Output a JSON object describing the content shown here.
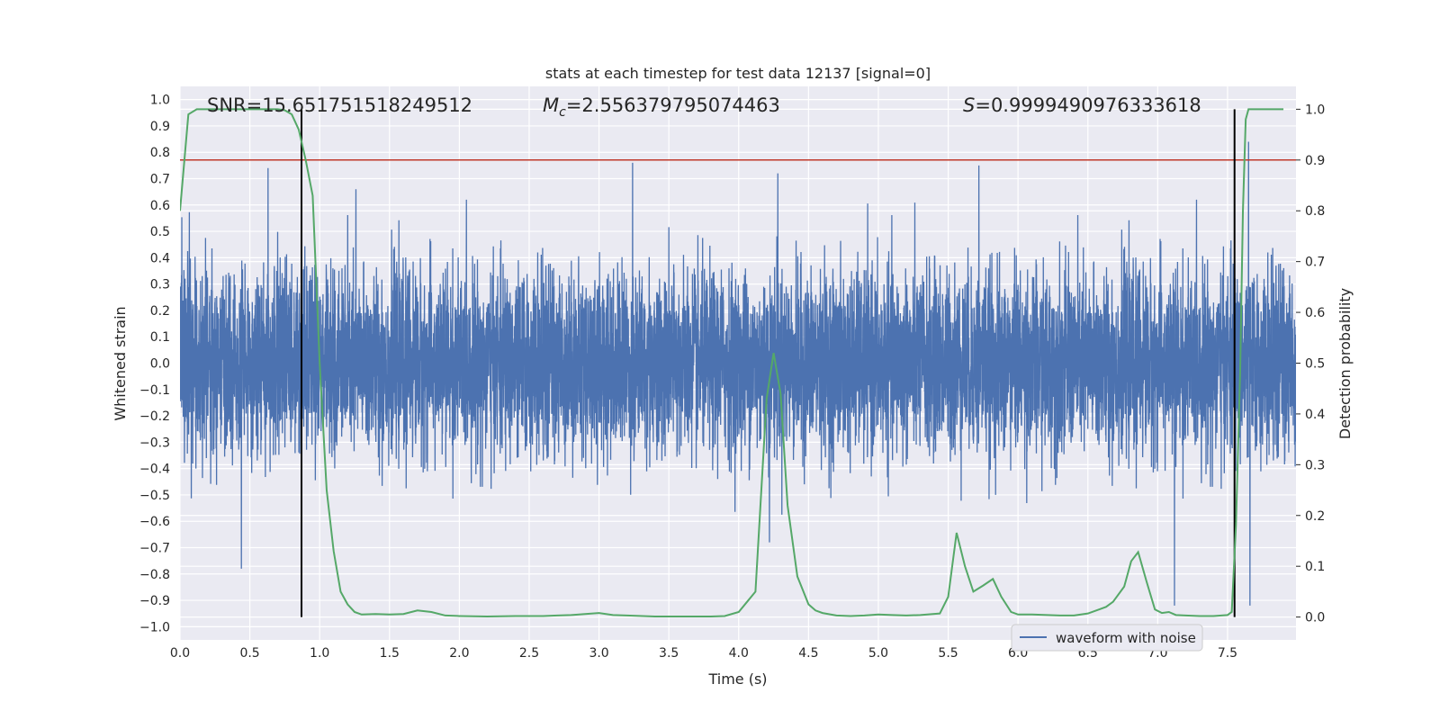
{
  "chart_data": {
    "type": "line",
    "title": "stats at each timestep for test data 12137 [signal=0]",
    "xlabel": "Time (s)",
    "ylabel": "Whitened strain",
    "y2label": "Detection probability",
    "xlim": [
      0.0,
      7.99
    ],
    "ylim": [
      -1.05,
      1.05
    ],
    "y2lim": [
      -0.045,
      1.045
    ],
    "xticks": [
      "0.0",
      "0.5",
      "1.0",
      "1.5",
      "2.0",
      "2.5",
      "3.0",
      "3.5",
      "4.0",
      "4.5",
      "5.0",
      "5.5",
      "6.0",
      "6.5",
      "7.0",
      "7.5"
    ],
    "yticks": [
      "−1.0",
      "−0.9",
      "−0.8",
      "−0.7",
      "−0.6",
      "−0.5",
      "−0.4",
      "−0.3",
      "−0.2",
      "−0.1",
      "0.0",
      "0.1",
      "0.2",
      "0.3",
      "0.4",
      "0.5",
      "0.6",
      "0.7",
      "0.8",
      "0.9",
      "1.0"
    ],
    "y2ticks": [
      "0.0",
      "0.1",
      "0.2",
      "0.3",
      "0.4",
      "0.5",
      "0.6",
      "0.7",
      "0.8",
      "0.9",
      "1.0"
    ],
    "annotations": {
      "snr_label": "SNR=15.651751518249512",
      "mc_symbol": "M",
      "mc_subscript": "c",
      "mc_value": "=2.556379795074463",
      "s_symbol": "S",
      "s_value": "=0.9999490976333618"
    },
    "legend": {
      "label": "waveform with noise",
      "position": "lower-right"
    },
    "threshold_line": {
      "y2": 0.9,
      "color": "#c0392b"
    },
    "vertical_markers": [
      0.87,
      7.55
    ],
    "waveform": {
      "name": "waveform with noise",
      "color": "#4c72b0",
      "amplitude_std": 0.17,
      "envelope_peaks": [
        {
          "x": 0.63,
          "y": 0.74
        },
        {
          "x": 0.44,
          "y": -0.78
        },
        {
          "x": 1.26,
          "y": 0.66
        },
        {
          "x": 3.24,
          "y": 0.76
        },
        {
          "x": 4.28,
          "y": 0.72
        },
        {
          "x": 4.22,
          "y": -0.68
        },
        {
          "x": 5.72,
          "y": 0.75
        },
        {
          "x": 7.12,
          "y": -0.92
        },
        {
          "x": 7.65,
          "y": 0.84
        },
        {
          "x": 7.66,
          "y": -0.92
        }
      ]
    },
    "detection_probability": {
      "color": "#55a868",
      "x": [
        0.0,
        0.06,
        0.12,
        0.2,
        0.3,
        0.4,
        0.5,
        0.6,
        0.7,
        0.75,
        0.8,
        0.85,
        0.9,
        0.95,
        1.0,
        1.05,
        1.1,
        1.15,
        1.2,
        1.25,
        1.3,
        1.4,
        1.5,
        1.6,
        1.7,
        1.8,
        1.9,
        2.0,
        2.2,
        2.4,
        2.6,
        2.7,
        2.8,
        2.9,
        3.0,
        3.1,
        3.2,
        3.4,
        3.6,
        3.8,
        3.9,
        4.0,
        4.06,
        4.12,
        4.2,
        4.25,
        4.3,
        4.35,
        4.42,
        4.5,
        4.55,
        4.6,
        4.7,
        4.8,
        4.9,
        5.0,
        5.1,
        5.2,
        5.3,
        5.44,
        5.5,
        5.56,
        5.62,
        5.68,
        5.75,
        5.82,
        5.88,
        5.95,
        6.0,
        6.1,
        6.3,
        6.4,
        6.5,
        6.58,
        6.63,
        6.68,
        6.76,
        6.81,
        6.86,
        6.92,
        6.98,
        7.03,
        7.08,
        7.13,
        7.2,
        7.3,
        7.4,
        7.5,
        7.53,
        7.56,
        7.59,
        7.61,
        7.63,
        7.65,
        7.7,
        7.8,
        7.9
      ],
      "y": [
        0.8,
        0.99,
        1.0,
        1.0,
        1.0,
        1.0,
        1.0,
        1.0,
        1.0,
        0.998,
        0.99,
        0.96,
        0.9,
        0.83,
        0.5,
        0.25,
        0.13,
        0.05,
        0.025,
        0.01,
        0.005,
        0.006,
        0.005,
        0.006,
        0.013,
        0.01,
        0.003,
        0.002,
        0.001,
        0.002,
        0.002,
        0.003,
        0.004,
        0.006,
        0.008,
        0.004,
        0.003,
        0.001,
        0.001,
        0.001,
        0.002,
        0.01,
        0.03,
        0.05,
        0.43,
        0.52,
        0.44,
        0.22,
        0.08,
        0.025,
        0.013,
        0.008,
        0.003,
        0.002,
        0.003,
        0.005,
        0.004,
        0.003,
        0.004,
        0.007,
        0.04,
        0.166,
        0.1,
        0.05,
        0.062,
        0.075,
        0.04,
        0.01,
        0.005,
        0.005,
        0.003,
        0.003,
        0.007,
        0.015,
        0.02,
        0.03,
        0.06,
        0.11,
        0.128,
        0.07,
        0.015,
        0.008,
        0.01,
        0.004,
        0.003,
        0.002,
        0.002,
        0.004,
        0.01,
        0.18,
        0.48,
        0.8,
        0.98,
        1.0,
        1.0,
        1.0,
        1.0
      ]
    }
  }
}
